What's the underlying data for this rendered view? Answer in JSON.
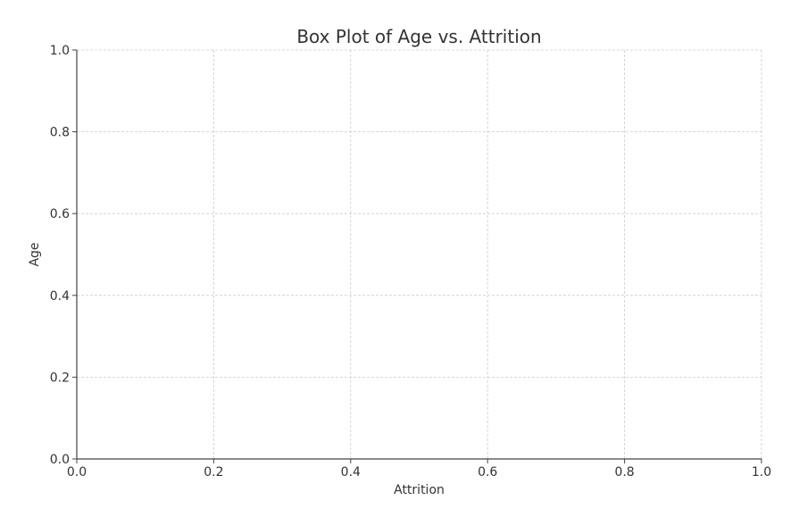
{
  "chart_data": {
    "type": "box",
    "title": "Box Plot of Age vs. Attrition",
    "xlabel": "Attrition",
    "ylabel": "Age",
    "xlim": [
      0.0,
      1.0
    ],
    "ylim": [
      0.0,
      1.0
    ],
    "xticks": [
      "0.0",
      "0.2",
      "0.4",
      "0.6",
      "0.8",
      "1.0"
    ],
    "yticks": [
      "0.0",
      "0.2",
      "0.4",
      "0.6",
      "0.8",
      "1.0"
    ],
    "grid": true,
    "series": []
  }
}
